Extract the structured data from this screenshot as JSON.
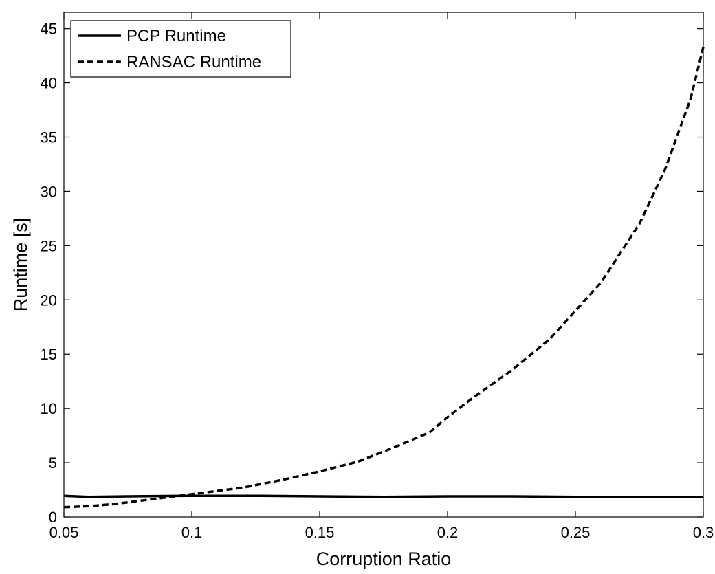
{
  "chart_data": {
    "type": "line",
    "title": "",
    "xlabel": "Corruption Ratio",
    "ylabel": "Runtime [s]",
    "xlim": [
      0.05,
      0.3
    ],
    "ylim": [
      0,
      46.5
    ],
    "xticks": [
      0.05,
      0.1,
      0.15,
      0.2,
      0.25,
      0.3
    ],
    "xtick_labels": [
      "0.05",
      "0.1",
      "0.15",
      "0.2",
      "0.25",
      "0.3"
    ],
    "yticks": [
      0,
      5,
      10,
      15,
      20,
      25,
      30,
      35,
      40,
      45
    ],
    "ytick_labels": [
      "0",
      "5",
      "10",
      "15",
      "20",
      "25",
      "30",
      "35",
      "40",
      "45"
    ],
    "grid": false,
    "legend_position": "top-left",
    "series": [
      {
        "name": "PCP Runtime",
        "style": "solid",
        "color": "#000000",
        "x": [
          0.05,
          0.06,
          0.075,
          0.1,
          0.125,
          0.15,
          0.175,
          0.2,
          0.225,
          0.25,
          0.275,
          0.3
        ],
        "y": [
          1.95,
          1.85,
          1.9,
          1.95,
          1.95,
          1.9,
          1.85,
          1.9,
          1.9,
          1.85,
          1.85,
          1.85
        ]
      },
      {
        "name": "RANSAC Runtime",
        "style": "dashed",
        "color": "#000000",
        "x": [
          0.05,
          0.06,
          0.07,
          0.08,
          0.09,
          0.1,
          0.11,
          0.12,
          0.135,
          0.15,
          0.165,
          0.18,
          0.193,
          0.2,
          0.21,
          0.225,
          0.24,
          0.25,
          0.26,
          0.275,
          0.285,
          0.295,
          0.3
        ],
        "y": [
          0.9,
          1.0,
          1.2,
          1.5,
          1.8,
          2.1,
          2.4,
          2.7,
          3.4,
          4.2,
          5.1,
          6.5,
          7.8,
          9.2,
          11.0,
          13.5,
          16.4,
          19.0,
          21.6,
          27.0,
          32.0,
          38.5,
          43.3
        ]
      }
    ]
  }
}
